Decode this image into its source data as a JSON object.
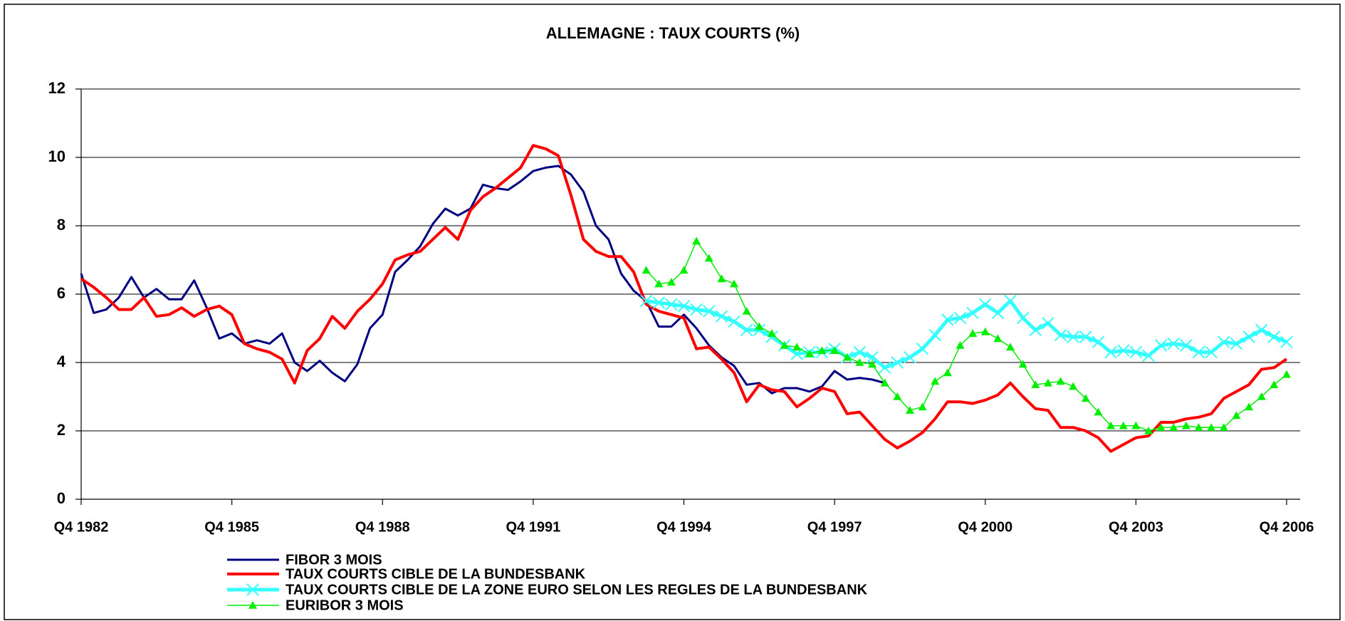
{
  "chart_data": {
    "type": "line",
    "title": "ALLEMAGNE : TAUX COURTS (%)",
    "categories": [
      "Q4 1982",
      null,
      null,
      null,
      null,
      null,
      null,
      null,
      null,
      null,
      null,
      null,
      "Q4 1985",
      null,
      null,
      null,
      null,
      null,
      null,
      null,
      null,
      null,
      null,
      null,
      "Q4 1988",
      null,
      null,
      null,
      null,
      null,
      null,
      null,
      null,
      null,
      null,
      null,
      "Q4 1991",
      null,
      null,
      null,
      null,
      null,
      null,
      null,
      null,
      null,
      null,
      null,
      "Q4 1994",
      null,
      null,
      null,
      null,
      null,
      null,
      null,
      null,
      null,
      null,
      null,
      "Q4 1997",
      null,
      null,
      null,
      null,
      null,
      null,
      null,
      null,
      null,
      null,
      null,
      "Q4 2000",
      null,
      null,
      null,
      null,
      null,
      null,
      null,
      null,
      null,
      null,
      null,
      "Q4 2003",
      null,
      null,
      null,
      null,
      null,
      null,
      null,
      null,
      null,
      null,
      null,
      "Q4 2006"
    ],
    "ylim": [
      0,
      12
    ],
    "yticks": [
      0,
      2,
      4,
      6,
      8,
      10,
      12
    ],
    "grid": true,
    "series": [
      {
        "name": "FIBOR 3 MOIS",
        "color": "#000080",
        "width": 3,
        "marker": "none",
        "values": [
          6.6,
          5.45,
          5.55,
          5.9,
          6.5,
          5.9,
          6.15,
          5.85,
          5.85,
          6.4,
          5.6,
          4.7,
          4.85,
          4.55,
          4.65,
          4.55,
          4.85,
          4.0,
          3.75,
          4.05,
          3.7,
          3.45,
          3.95,
          5.0,
          5.4,
          6.65,
          7.0,
          7.4,
          8.05,
          8.5,
          8.3,
          8.5,
          9.2,
          9.1,
          9.05,
          9.3,
          9.6,
          9.7,
          9.75,
          9.5,
          9.0,
          8.0,
          7.6,
          6.6,
          6.1,
          5.8,
          5.05,
          5.05,
          5.4,
          5.0,
          4.5,
          4.15,
          3.9,
          3.35,
          3.4,
          3.1,
          3.25,
          3.25,
          3.15,
          3.3,
          3.75,
          3.5,
          3.55,
          3.5,
          3.4,
          null,
          null,
          null,
          null,
          null,
          null,
          null,
          null,
          null,
          null,
          null,
          null,
          null,
          null,
          null,
          null,
          null,
          null,
          null,
          null,
          null,
          null,
          null,
          null,
          null,
          null,
          null,
          null,
          null,
          null,
          null,
          null
        ]
      },
      {
        "name": "TAUX COURTS CIBLE DE LA BUNDESBANK",
        "color": "#ff0000",
        "width": 4,
        "marker": "none",
        "values": [
          6.45,
          6.2,
          5.9,
          5.55,
          5.55,
          5.9,
          5.35,
          5.4,
          5.6,
          5.35,
          5.55,
          5.65,
          5.4,
          4.55,
          4.4,
          4.3,
          4.1,
          3.4,
          4.35,
          4.7,
          5.35,
          5.0,
          5.5,
          5.85,
          6.3,
          7.0,
          7.15,
          7.25,
          7.6,
          7.95,
          7.6,
          8.45,
          8.85,
          9.1,
          9.4,
          9.7,
          10.35,
          10.25,
          10.05,
          8.9,
          7.6,
          7.25,
          7.1,
          7.1,
          6.65,
          5.7,
          5.5,
          5.4,
          5.3,
          4.4,
          4.45,
          4.1,
          3.7,
          2.85,
          3.35,
          3.2,
          3.15,
          2.7,
          2.95,
          3.25,
          3.15,
          2.5,
          2.55,
          2.15,
          1.75,
          1.5,
          1.7,
          1.95,
          2.35,
          2.85,
          2.85,
          2.8,
          2.9,
          3.05,
          3.4,
          3.0,
          2.65,
          2.6,
          2.1,
          2.1,
          2.0,
          1.8,
          1.4,
          1.6,
          1.8,
          1.85,
          2.25,
          2.25,
          2.35,
          2.4,
          2.5,
          2.95,
          3.15,
          3.35,
          3.8,
          3.85,
          4.1
        ]
      },
      {
        "name": "TAUX COURTS CIBLE DE LA ZONE EURO SELON LES REGLES DE LA BUNDESBANK",
        "color": "#33ffff",
        "width": 5,
        "marker": "x",
        "values": [
          null,
          null,
          null,
          null,
          null,
          null,
          null,
          null,
          null,
          null,
          null,
          null,
          null,
          null,
          null,
          null,
          null,
          null,
          null,
          null,
          null,
          null,
          null,
          null,
          null,
          null,
          null,
          null,
          null,
          null,
          null,
          null,
          null,
          null,
          null,
          null,
          null,
          null,
          null,
          null,
          null,
          null,
          null,
          null,
          null,
          5.8,
          5.75,
          5.7,
          5.65,
          5.55,
          5.5,
          5.35,
          5.2,
          4.95,
          4.95,
          4.75,
          4.5,
          4.25,
          4.3,
          4.3,
          4.4,
          4.15,
          4.3,
          4.15,
          3.85,
          4.0,
          4.15,
          4.4,
          4.8,
          5.25,
          5.3,
          5.45,
          5.7,
          5.45,
          5.8,
          5.3,
          4.95,
          5.15,
          4.8,
          4.75,
          4.75,
          4.6,
          4.3,
          4.35,
          4.3,
          4.2,
          4.5,
          4.55,
          4.5,
          4.3,
          4.3,
          4.6,
          4.55,
          4.75,
          4.95,
          4.75,
          4.6
        ]
      },
      {
        "name": "EURIBOR 3 MOIS",
        "color": "#00ee00",
        "width": 1.5,
        "marker": "triangle",
        "values": [
          null,
          null,
          null,
          null,
          null,
          null,
          null,
          null,
          null,
          null,
          null,
          null,
          null,
          null,
          null,
          null,
          null,
          null,
          null,
          null,
          null,
          null,
          null,
          null,
          null,
          null,
          null,
          null,
          null,
          null,
          null,
          null,
          null,
          null,
          null,
          null,
          null,
          null,
          null,
          null,
          null,
          null,
          null,
          null,
          null,
          6.7,
          6.3,
          6.35,
          6.7,
          7.55,
          7.05,
          6.45,
          6.3,
          5.5,
          5.05,
          4.85,
          4.5,
          4.45,
          4.25,
          4.35,
          4.35,
          4.15,
          4.0,
          3.95,
          3.4,
          3.0,
          2.6,
          2.7,
          3.45,
          3.7,
          4.5,
          4.85,
          4.9,
          4.7,
          4.45,
          3.95,
          3.35,
          3.4,
          3.45,
          3.3,
          2.95,
          2.55,
          2.15,
          2.15,
          2.15,
          2.0,
          2.1,
          2.1,
          2.15,
          2.1,
          2.1,
          2.1,
          2.45,
          2.7,
          3.0,
          3.35,
          3.65
        ]
      }
    ]
  }
}
